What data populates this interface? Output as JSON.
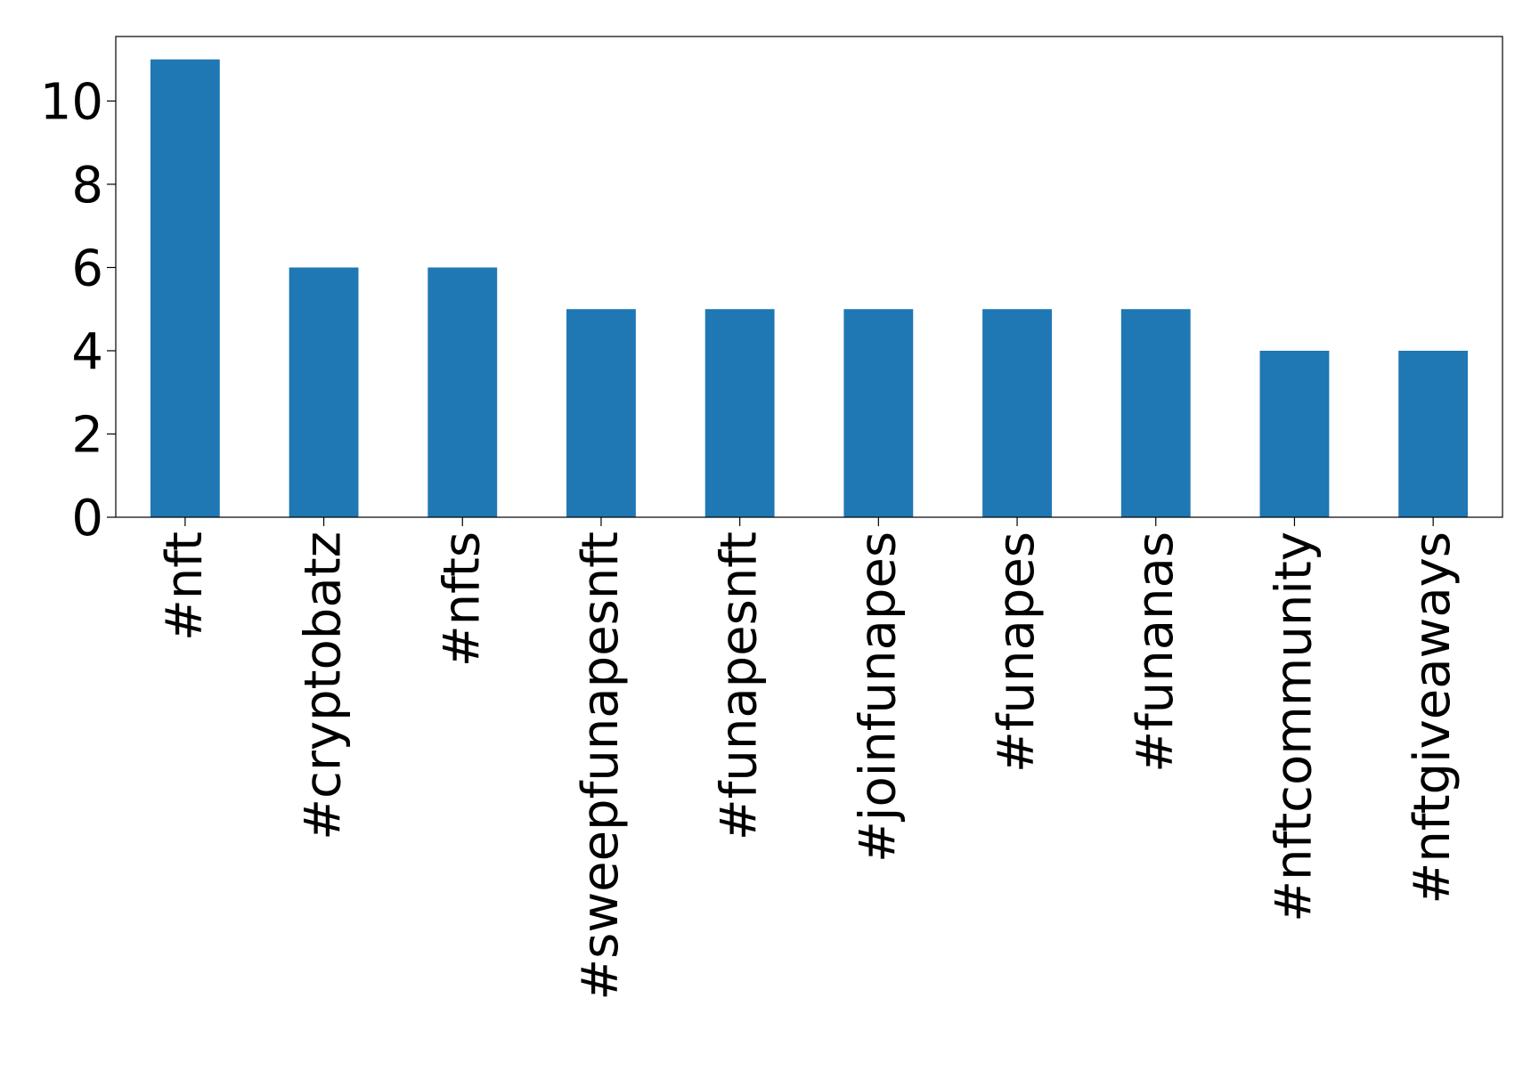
{
  "chart_data": {
    "type": "bar",
    "title": "",
    "xlabel": "",
    "ylabel": "",
    "categories": [
      "#nft",
      "#cryptobatz",
      "#nfts",
      "#sweepfunapesnft",
      "#funapesnft",
      "#joinfunapes",
      "#funapes",
      "#funanas",
      "#nftcommunity",
      "#nftgiveaways"
    ],
    "values": [
      11,
      6,
      6,
      5,
      5,
      5,
      5,
      5,
      4,
      4
    ],
    "ylim": [
      0,
      11.55
    ],
    "yticks": [
      0,
      2,
      4,
      6,
      8,
      10
    ],
    "bar_color": "#1f77b4",
    "grid": false,
    "legend": false
  }
}
